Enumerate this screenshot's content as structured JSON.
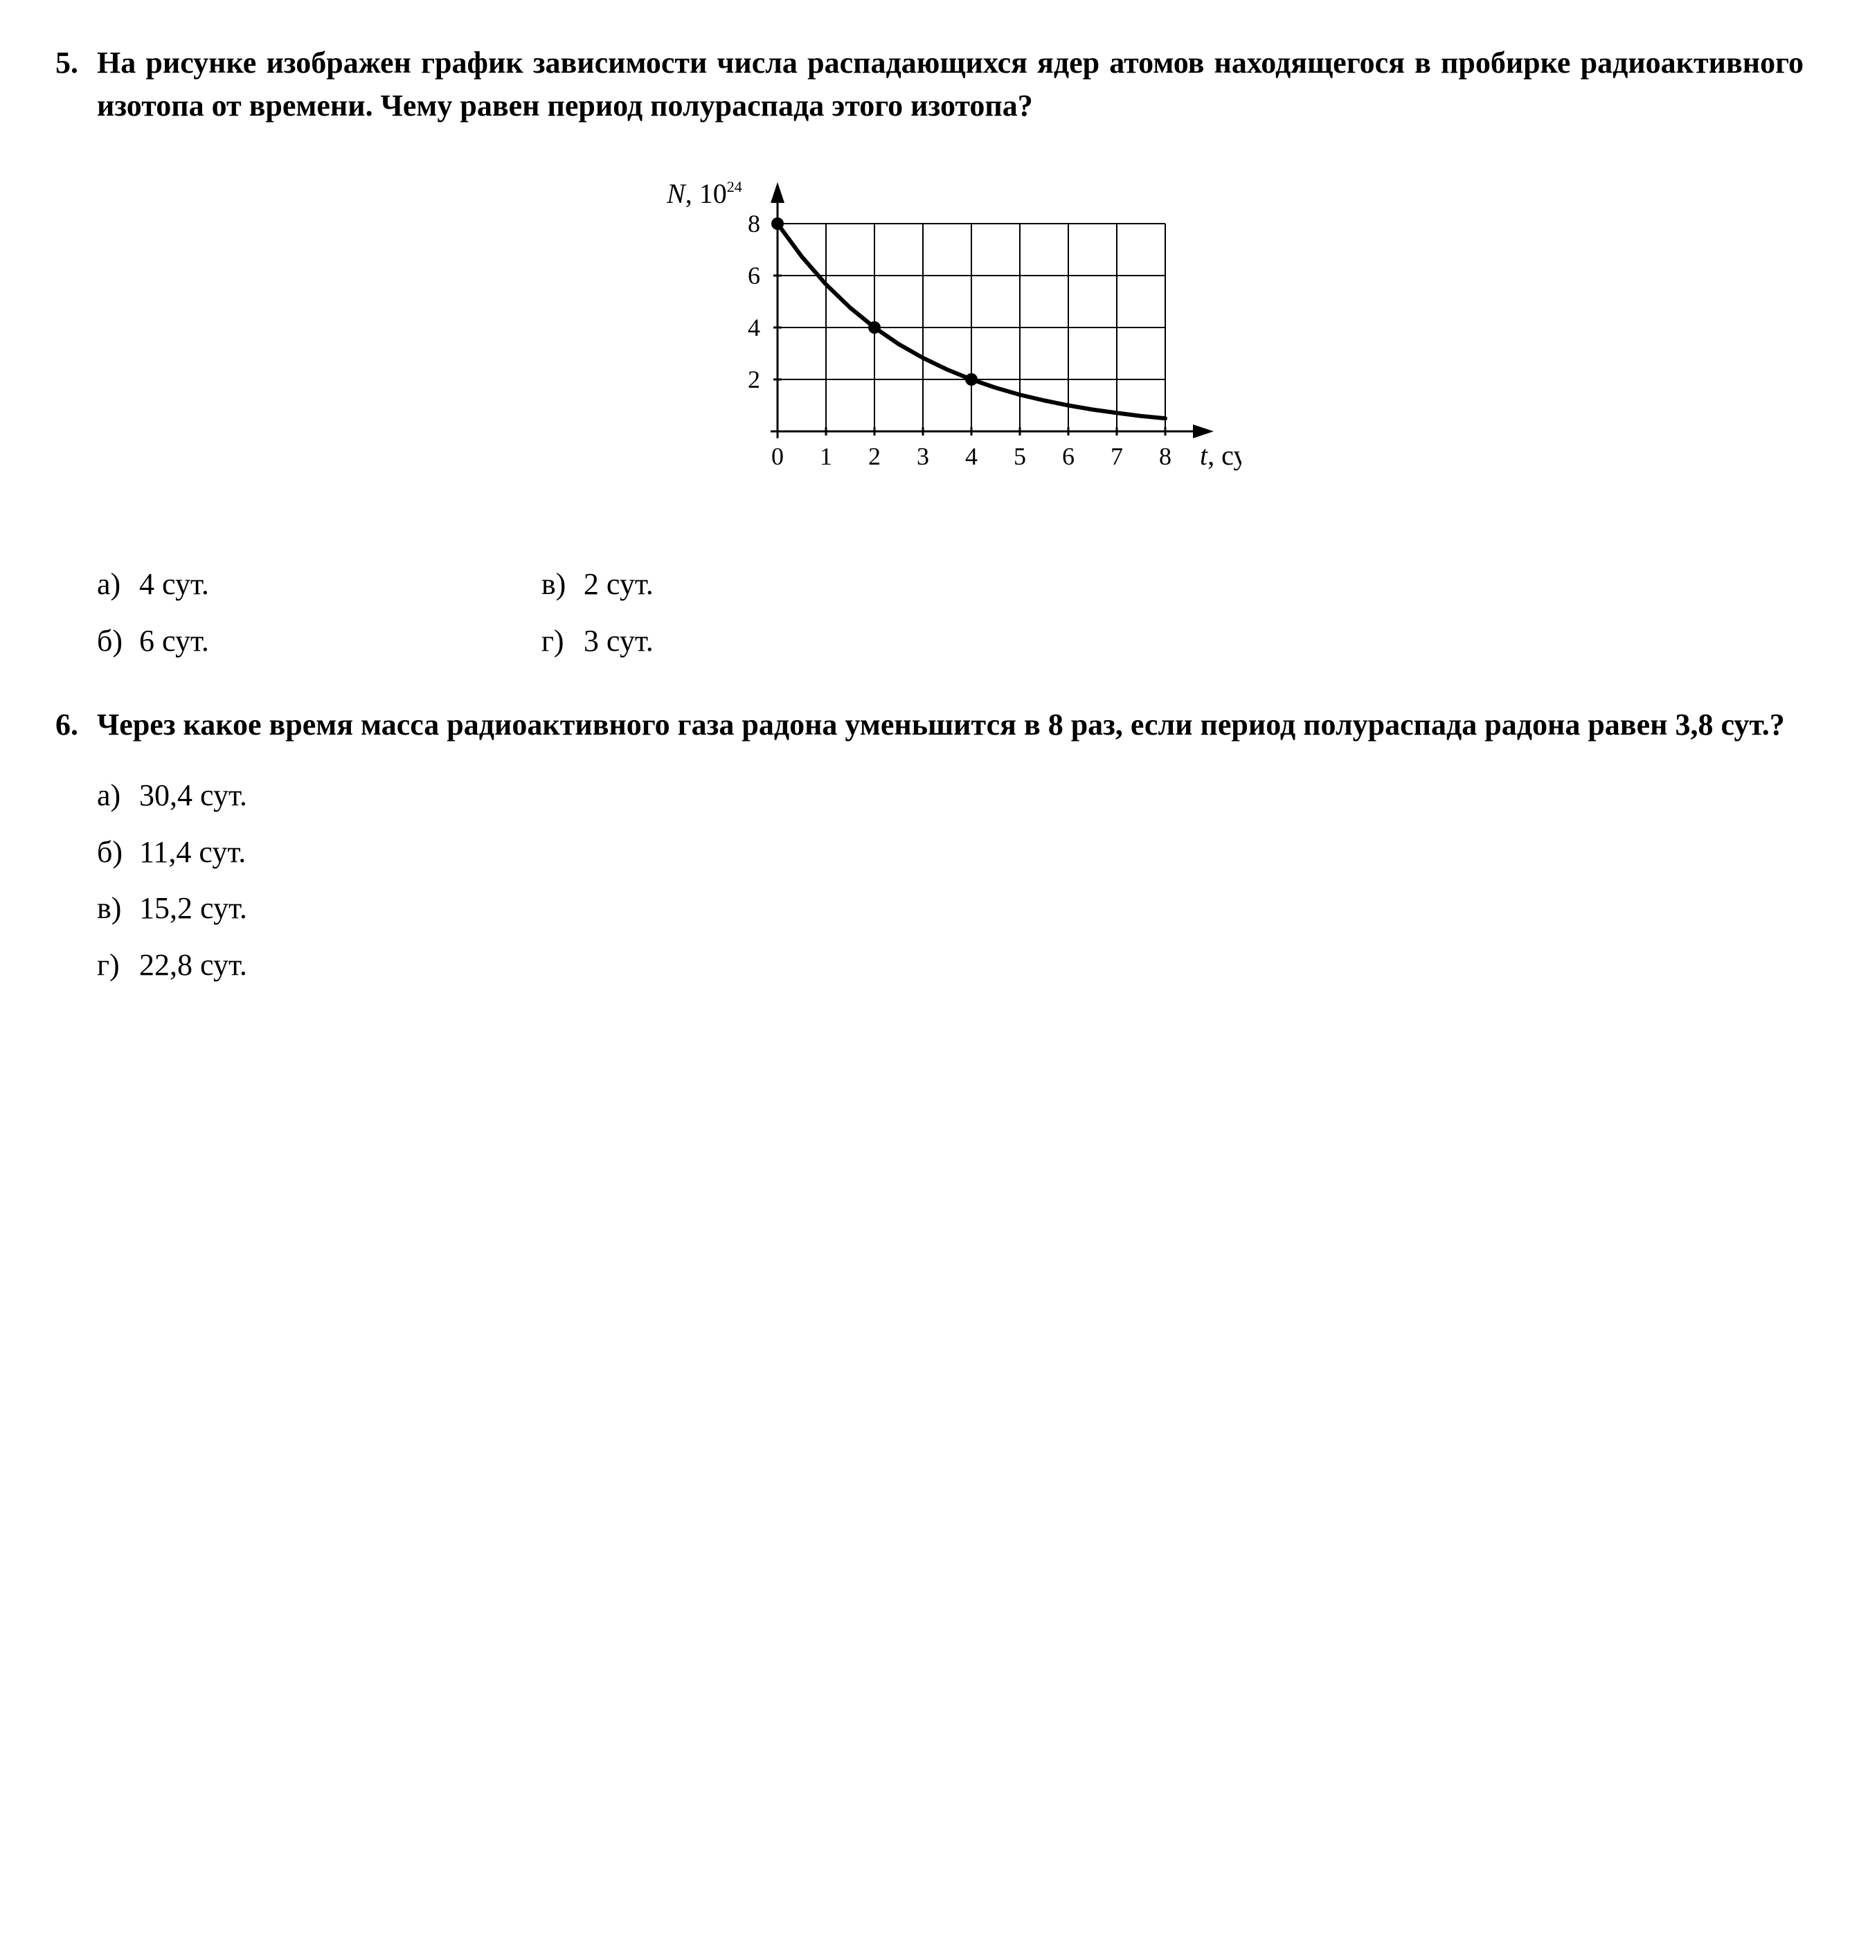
{
  "problem5": {
    "number": "5.",
    "text": "На рисунке изображен график зависимости числа распадающихся ядер атомов находящегося в пробирке радиоактивного изотопа от времени. Чему равен период полураспада этого изотопа?",
    "options": {
      "a": {
        "label": "а)",
        "value": "4 сут."
      },
      "b": {
        "label": "б)",
        "value": "6 сут."
      },
      "v": {
        "label": "в)",
        "value": "2 сут."
      },
      "g": {
        "label": "г)",
        "value": "3 сут."
      }
    },
    "chart": {
      "type": "line",
      "y_axis_label": "N, 10",
      "y_axis_exponent": "24",
      "x_axis_label": "t, сут",
      "xlim": [
        0,
        8
      ],
      "ylim": [
        0,
        8
      ],
      "xtick_step": 1,
      "ytick_step": 2,
      "xtick_labels": [
        "0",
        "1",
        "2",
        "3",
        "4",
        "5",
        "6",
        "7",
        "8"
      ],
      "ytick_labels": [
        "2",
        "4",
        "6",
        "8"
      ],
      "curve_points": [
        {
          "x": 0,
          "y": 8.0
        },
        {
          "x": 0.5,
          "y": 6.73
        },
        {
          "x": 1,
          "y": 5.66
        },
        {
          "x": 1.5,
          "y": 4.76
        },
        {
          "x": 2,
          "y": 4.0
        },
        {
          "x": 2.5,
          "y": 3.36
        },
        {
          "x": 3,
          "y": 2.83
        },
        {
          "x": 3.5,
          "y": 2.38
        },
        {
          "x": 4,
          "y": 2.0
        },
        {
          "x": 4.5,
          "y": 1.68
        },
        {
          "x": 5,
          "y": 1.41
        },
        {
          "x": 5.5,
          "y": 1.19
        },
        {
          "x": 6,
          "y": 1.0
        },
        {
          "x": 6.5,
          "y": 0.84
        },
        {
          "x": 7,
          "y": 0.71
        },
        {
          "x": 7.5,
          "y": 0.59
        },
        {
          "x": 8,
          "y": 0.5
        }
      ],
      "markers": [
        {
          "x": 0,
          "y": 8
        },
        {
          "x": 2,
          "y": 4
        },
        {
          "x": 4,
          "y": 2
        }
      ],
      "line_width": 6,
      "marker_radius": 9,
      "grid_line_width": 2,
      "axis_line_width": 3,
      "tick_fontsize": 36,
      "label_fontsize": 40,
      "background_color": "#ffffff",
      "grid_color": "#000000",
      "curve_color": "#000000",
      "text_color": "#000000"
    }
  },
  "problem6": {
    "number": "6.",
    "text": "Через какое время масса радиоактивного газа радона уменьшится в 8 раз, если период полураспада радона равен 3,8 сут.?",
    "options": {
      "a": {
        "label": "а)",
        "value": "30,4 сут."
      },
      "b": {
        "label": "б)",
        "value": "11,4 сут."
      },
      "v": {
        "label": "в)",
        "value": "15,2 сут."
      },
      "g": {
        "label": "г)",
        "value": "22,8 сут."
      }
    }
  }
}
